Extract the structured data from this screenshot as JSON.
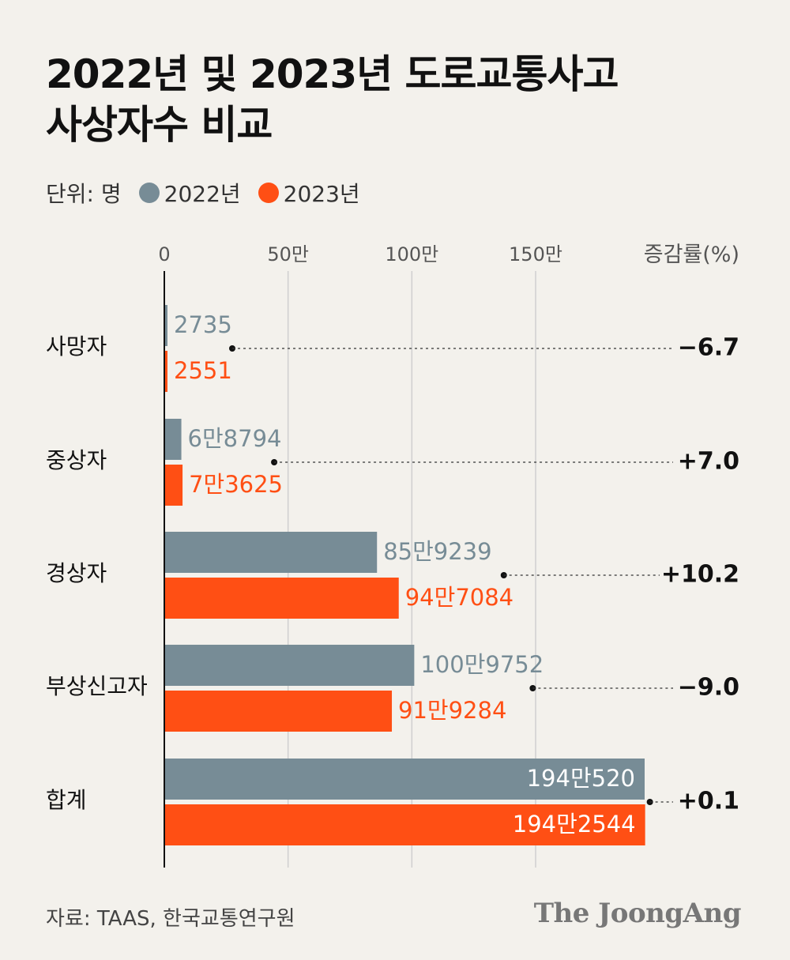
{
  "title": [
    "2022년 및 2023년 도로교통사고",
    "사상자수 비교"
  ],
  "unit_label": "단위: 명",
  "rate_header": "증감률(%)",
  "colors": {
    "y2022": "#778c96",
    "y2023": "#ff4f14",
    "grid": "#cfcfcf",
    "axis": "#111111",
    "text": "#111111"
  },
  "chart_data": {
    "type": "bar",
    "orientation": "horizontal",
    "categories": [
      "사망자",
      "중상자",
      "경상자",
      "부상신고자",
      "합계"
    ],
    "series": [
      {
        "name": "2022년",
        "values": [
          2735,
          68794,
          859239,
          1009752,
          1940520
        ],
        "labels": [
          "2735",
          "6만8794",
          "85만9239",
          "100만9752",
          "194만520"
        ]
      },
      {
        "name": "2023년",
        "values": [
          2551,
          73625,
          947084,
          919284,
          1942544
        ],
        "labels": [
          "2551",
          "7만3625",
          "94만7084",
          "91만9284",
          "194만2544"
        ]
      }
    ],
    "change_rates": [
      "−6.7",
      "+7.0",
      "+10.2",
      "−9.0",
      "+0.1"
    ],
    "x_ticks": [
      0,
      500000,
      1000000,
      1500000
    ],
    "x_tick_labels": [
      "0",
      "50만",
      "100만",
      "150만"
    ],
    "xlim": [
      0,
      1940520
    ],
    "grid": true
  },
  "source": "자료: TAAS, 한국교통연구원",
  "brand": "The JoongAng"
}
